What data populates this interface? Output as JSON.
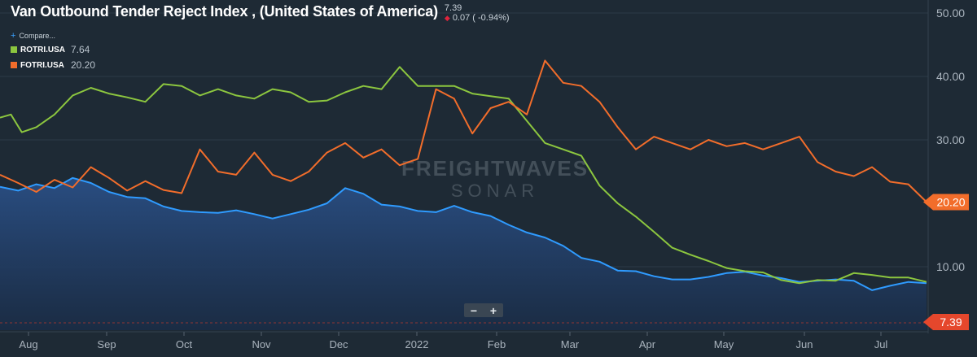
{
  "title": "Van Outbound Tender Reject Index , (United States of America)",
  "last_value": "7.39",
  "change": "0.07 ( -0.94%)",
  "compare_label": "Compare...",
  "legend": [
    {
      "name": "ROTRI.USA",
      "value": "7.64",
      "color": "#8cc63f"
    },
    {
      "name": "FOTRI.USA",
      "value": "20.20",
      "color": "#f26d2b"
    }
  ],
  "watermark": {
    "line1": "FREIGHTWAVES",
    "line2": "SONAR"
  },
  "zoom": {
    "minus": "−",
    "plus": "+"
  },
  "chart_data": {
    "type": "area",
    "x_ticks": [
      "Aug",
      "Sep",
      "Oct",
      "Nov",
      "Dec",
      "2022",
      "Feb",
      "Mar",
      "Apr",
      "May",
      "Jun",
      "Jul"
    ],
    "y_ticks": [
      "50.00",
      "40.00",
      "30.00",
      "10.00"
    ],
    "ylim": [
      0,
      51
    ],
    "price_tags": [
      {
        "label": "20.20",
        "value": 20.2,
        "color": "#f26d2b"
      },
      {
        "label": "7.39",
        "value": 7.39,
        "color": "#e5472c"
      }
    ],
    "series": [
      {
        "name": "Van Outbound Tender Reject Index , (United States of America)",
        "color": "#2f9bff",
        "fill": true,
        "points": [
          [
            0,
            22.6
          ],
          [
            0.5,
            22
          ],
          [
            1,
            23
          ],
          [
            1.5,
            22.4
          ],
          [
            2,
            24
          ],
          [
            2.5,
            23.2
          ],
          [
            3,
            21.8
          ],
          [
            3.5,
            21
          ],
          [
            4,
            20.8
          ],
          [
            4.5,
            19.5
          ],
          [
            5,
            18.8
          ],
          [
            5.5,
            18.6
          ],
          [
            6,
            18.5
          ],
          [
            6.5,
            18.9
          ],
          [
            7,
            18.3
          ],
          [
            7.5,
            17.6
          ],
          [
            8,
            18.3
          ],
          [
            8.5,
            19
          ],
          [
            9,
            20
          ],
          [
            9.5,
            22.4
          ],
          [
            10,
            21.5
          ],
          [
            10.5,
            19.8
          ],
          [
            11,
            19.5
          ],
          [
            11.5,
            18.8
          ],
          [
            12,
            18.6
          ],
          [
            12.5,
            19.6
          ],
          [
            13,
            18.6
          ],
          [
            13.5,
            18
          ],
          [
            14,
            16.6
          ],
          [
            14.5,
            15.4
          ],
          [
            15,
            14.6
          ],
          [
            15.5,
            13.3
          ],
          [
            16,
            11.4
          ],
          [
            16.5,
            10.8
          ],
          [
            17,
            9.4
          ],
          [
            17.5,
            9.3
          ],
          [
            18,
            8.5
          ],
          [
            18.5,
            8
          ],
          [
            19,
            8
          ],
          [
            19.5,
            8.4
          ],
          [
            20,
            9
          ],
          [
            20.5,
            9.2
          ],
          [
            21,
            8.6
          ],
          [
            21.5,
            8.2
          ],
          [
            22,
            7.6
          ],
          [
            22.5,
            7.8
          ],
          [
            23,
            8
          ],
          [
            23.5,
            7.8
          ],
          [
            24,
            6.3
          ],
          [
            24.5,
            7
          ],
          [
            25,
            7.6
          ],
          [
            25.5,
            7.4
          ]
        ]
      },
      {
        "name": "ROTRI.USA",
        "color": "#8cc63f",
        "fill": false,
        "points": [
          [
            0,
            33.5
          ],
          [
            0.3,
            34
          ],
          [
            0.6,
            31.2
          ],
          [
            1,
            32
          ],
          [
            1.5,
            34
          ],
          [
            2,
            37
          ],
          [
            2.5,
            38.2
          ],
          [
            3,
            37.3
          ],
          [
            3.5,
            36.7
          ],
          [
            4,
            36
          ],
          [
            4.5,
            38.8
          ],
          [
            5,
            38.5
          ],
          [
            5.5,
            37
          ],
          [
            6,
            38
          ],
          [
            6.5,
            37
          ],
          [
            7,
            36.5
          ],
          [
            7.5,
            38
          ],
          [
            8,
            37.5
          ],
          [
            8.5,
            36
          ],
          [
            9,
            36.2
          ],
          [
            9.5,
            37.5
          ],
          [
            10,
            38.5
          ],
          [
            10.5,
            38
          ],
          [
            11,
            41.5
          ],
          [
            11.5,
            38.5
          ],
          [
            12,
            38.5
          ],
          [
            12.5,
            38.5
          ],
          [
            13,
            37.3
          ],
          [
            13.5,
            36.9
          ],
          [
            14,
            36.5
          ],
          [
            14.5,
            33
          ],
          [
            15,
            29.5
          ],
          [
            15.5,
            28.5
          ],
          [
            16,
            27.5
          ],
          [
            16.5,
            22.8
          ],
          [
            17,
            20
          ],
          [
            17.5,
            17.9
          ],
          [
            18,
            15.5
          ],
          [
            18.5,
            13
          ],
          [
            19,
            11.9
          ],
          [
            19.5,
            10.9
          ],
          [
            20,
            9.8
          ],
          [
            20.5,
            9.3
          ],
          [
            21,
            9.1
          ],
          [
            21.5,
            7.9
          ],
          [
            22,
            7.4
          ],
          [
            22.5,
            7.9
          ],
          [
            23,
            7.8
          ],
          [
            23.5,
            9
          ],
          [
            24,
            8.7
          ],
          [
            24.5,
            8.3
          ],
          [
            25,
            8.3
          ],
          [
            25.5,
            7.6
          ]
        ]
      },
      {
        "name": "FOTRI.USA",
        "color": "#f26d2b",
        "fill": false,
        "points": [
          [
            0,
            24.5
          ],
          [
            0.5,
            23.2
          ],
          [
            1,
            21.8
          ],
          [
            1.5,
            23.7
          ],
          [
            2,
            22.5
          ],
          [
            2.5,
            25.7
          ],
          [
            3,
            24
          ],
          [
            3.5,
            22
          ],
          [
            4,
            23.5
          ],
          [
            4.5,
            22.1
          ],
          [
            5,
            21.6
          ],
          [
            5.5,
            28.5
          ],
          [
            6,
            25
          ],
          [
            6.5,
            24.5
          ],
          [
            7,
            28
          ],
          [
            7.5,
            24.5
          ],
          [
            8,
            23.5
          ],
          [
            8.5,
            25
          ],
          [
            9,
            28
          ],
          [
            9.5,
            29.5
          ],
          [
            10,
            27.2
          ],
          [
            10.5,
            28.5
          ],
          [
            11,
            26
          ],
          [
            11.5,
            27
          ],
          [
            12,
            38
          ],
          [
            12.5,
            36.5
          ],
          [
            13,
            31
          ],
          [
            13.5,
            35
          ],
          [
            14,
            36
          ],
          [
            14.5,
            34
          ],
          [
            15,
            42.5
          ],
          [
            15.5,
            39
          ],
          [
            16,
            38.5
          ],
          [
            16.5,
            36
          ],
          [
            17,
            32
          ],
          [
            17.5,
            28.5
          ],
          [
            18,
            30.5
          ],
          [
            18.5,
            29.5
          ],
          [
            19,
            28.5
          ],
          [
            19.5,
            30
          ],
          [
            20,
            29
          ],
          [
            20.5,
            29.5
          ],
          [
            21,
            28.5
          ],
          [
            21.5,
            29.5
          ],
          [
            22,
            30.5
          ],
          [
            22.5,
            26.5
          ],
          [
            23,
            25
          ],
          [
            23.5,
            24.3
          ],
          [
            24,
            25.7
          ],
          [
            24.5,
            23.4
          ],
          [
            25,
            23
          ],
          [
            25.5,
            20.2
          ]
        ]
      }
    ]
  }
}
